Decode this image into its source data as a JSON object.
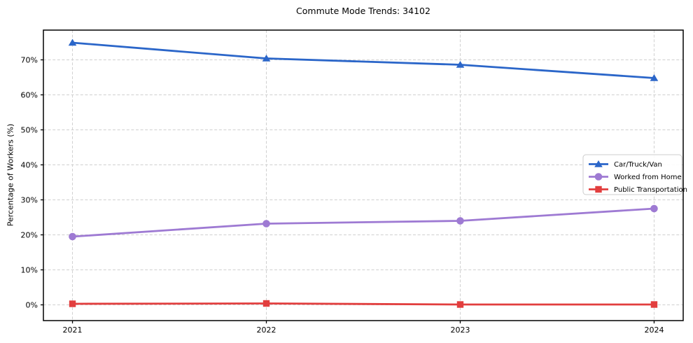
{
  "title": "Commute Mode Trends: 34102",
  "axes": {
    "ylabel": "Percentage of Workers (%)",
    "y_tick_labels": [
      "0%",
      "10%",
      "20%",
      "30%",
      "40%",
      "50%",
      "60%",
      "70%"
    ],
    "y_tick_values": [
      0,
      10,
      20,
      30,
      40,
      50,
      60,
      70
    ],
    "x_tick_labels": [
      "2021",
      "2022",
      "2023",
      "2024"
    ]
  },
  "chart_data": {
    "type": "line",
    "title": "Commute Mode Trends: 34102",
    "xlabel": "",
    "ylabel": "Percentage of Workers (%)",
    "x": [
      2021,
      2022,
      2023,
      2024
    ],
    "series": [
      {
        "name": "Car/Truck/Van",
        "values": [
          74.9,
          70.4,
          68.6,
          64.8
        ],
        "color": "#2b66c9",
        "marker": "triangle"
      },
      {
        "name": "Worked from Home",
        "values": [
          19.5,
          23.2,
          24.0,
          27.5
        ],
        "color": "#9e7ad3",
        "marker": "circle"
      },
      {
        "name": "Public Transportation",
        "values": [
          0.3,
          0.4,
          0.1,
          0.1
        ],
        "color": "#e23e3e",
        "marker": "square"
      }
    ],
    "xlim": [
      2020.85,
      2024.15
    ],
    "ylim": [
      -4.5,
      78.5
    ],
    "grid": true,
    "grid_style": "dashed",
    "legend_position": "center-right"
  },
  "style": {
    "grid_color": "#d0d0d0",
    "frame_color": "#000000",
    "legend_border_color": "#cccccc",
    "legend_bg": "#ffffff"
  }
}
